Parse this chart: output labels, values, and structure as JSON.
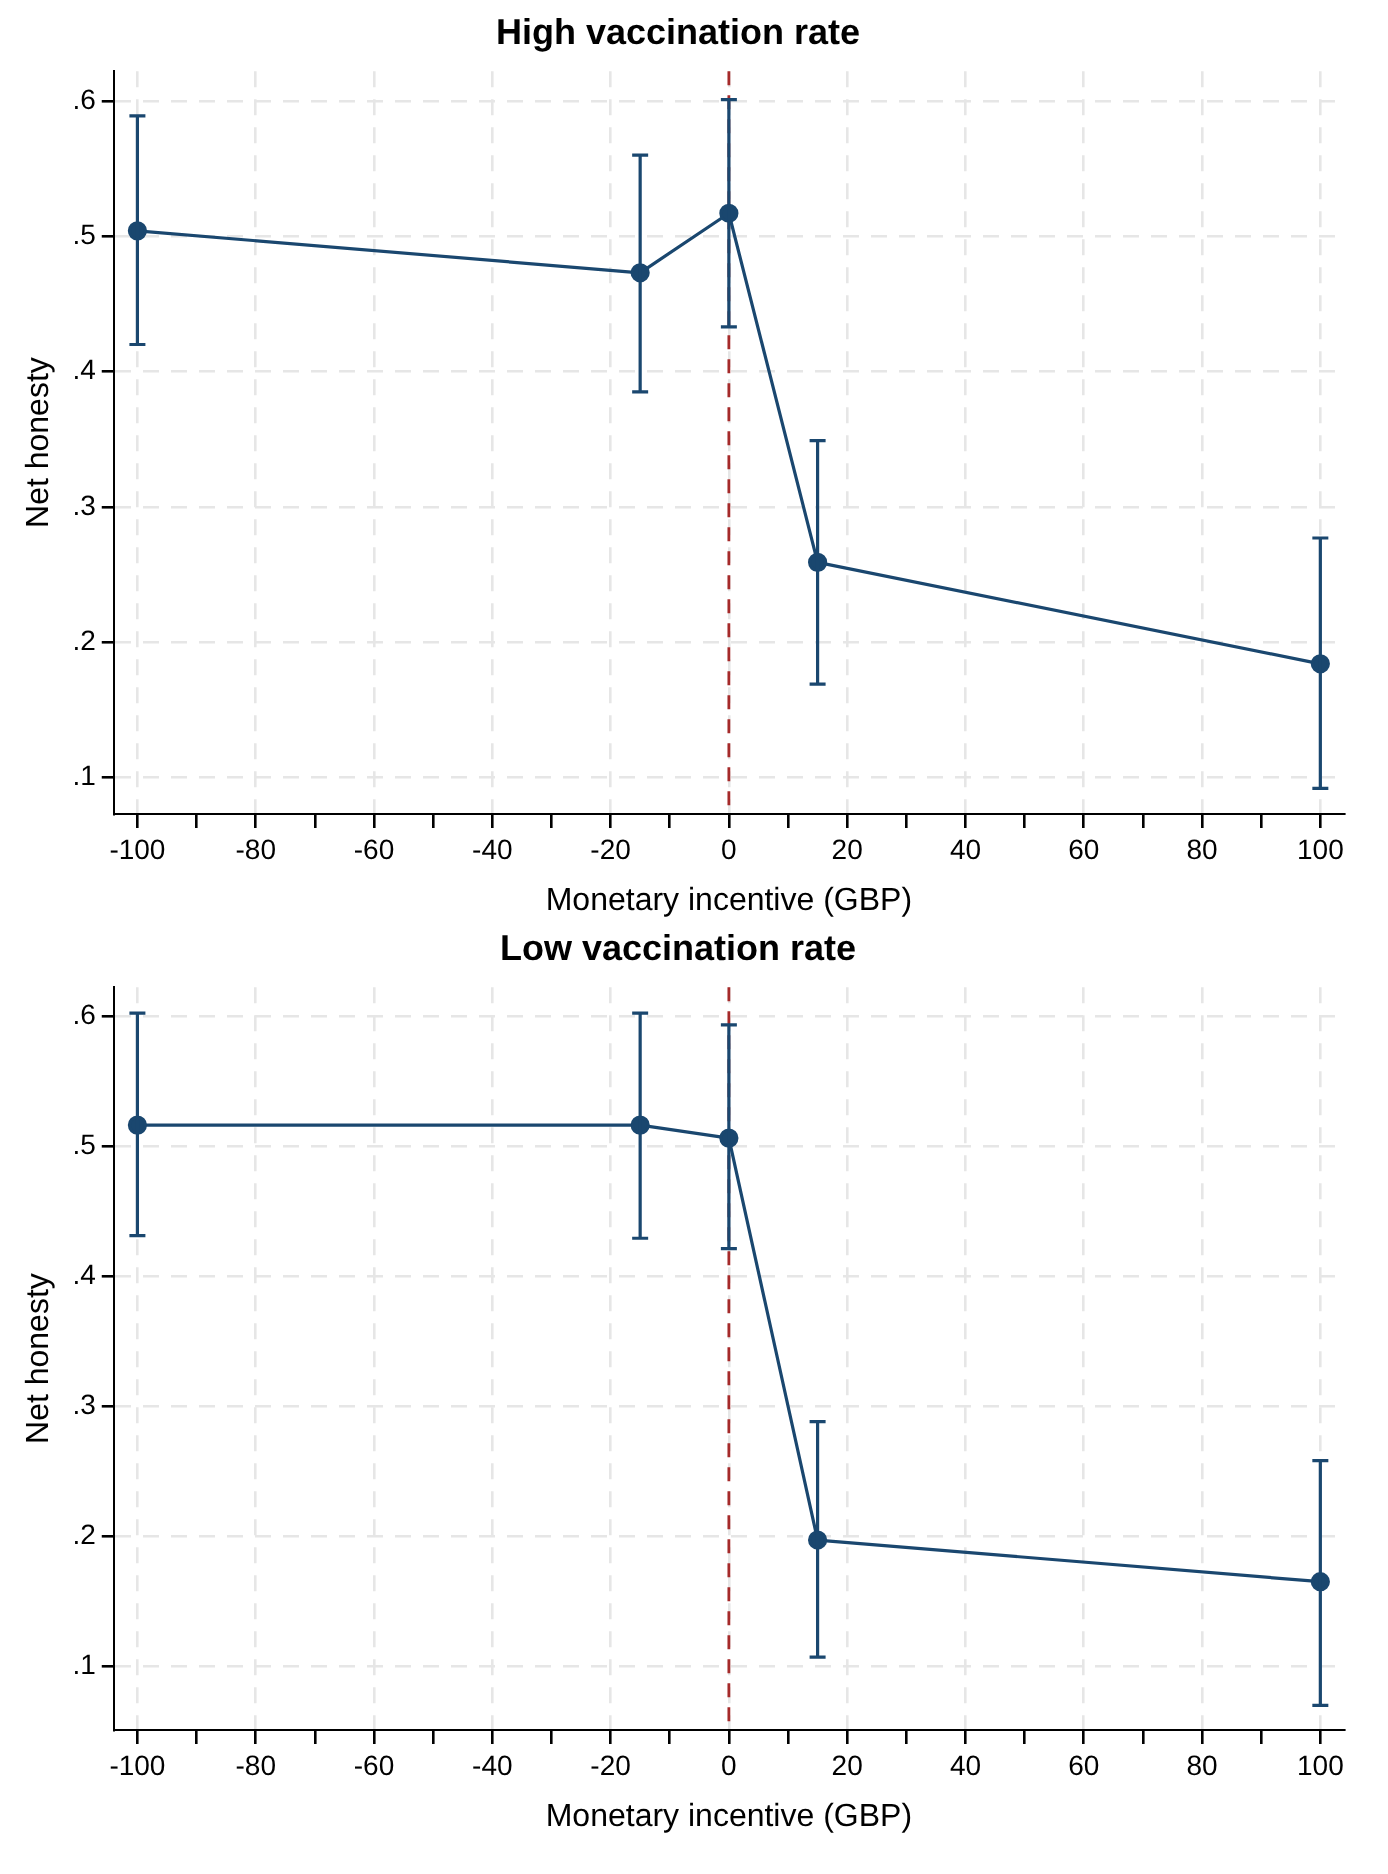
{
  "chart_data": [
    {
      "type": "line",
      "title": "High vaccination rate",
      "xlabel": "Monetary incentive (GBP)",
      "ylabel": "Net honesty",
      "x": [
        -100,
        -15,
        0,
        15,
        100
      ],
      "series": [
        {
          "color": "#1a476f",
          "values": [
            0.504,
            0.473,
            0.517,
            0.259,
            0.184
          ],
          "errors": [
            [
              0.42,
              0.589
            ],
            [
              0.385,
              0.56
            ],
            [
              0.433,
              0.601
            ],
            [
              0.169,
              0.349
            ],
            [
              0.092,
              0.277
            ]
          ]
        }
      ],
      "marker": "circle",
      "line_style": "solid",
      "grid": true,
      "legend": false,
      "xlim": [
        -104,
        104
      ],
      "ylim": [
        0.073,
        0.622
      ],
      "xticks": [
        -100,
        {
          "value": -90,
          "label": null
        },
        -80,
        {
          "value": -70,
          "label": null
        },
        -60,
        {
          "value": -50,
          "label": null
        },
        -40,
        {
          "value": -30,
          "label": null
        },
        -20,
        {
          "value": -10,
          "label": null
        },
        0,
        {
          "value": 10,
          "label": null
        },
        20,
        {
          "value": 30,
          "label": null
        },
        40,
        {
          "value": 50,
          "label": null
        },
        60,
        {
          "value": 70,
          "label": null
        },
        80,
        {
          "value": 90,
          "label": null
        },
        100
      ],
      "yticks": [
        {
          "value": 0.1,
          "label": ".1"
        },
        {
          "value": 0.2,
          "label": ".2"
        },
        {
          "value": 0.3,
          "label": ".3"
        },
        {
          "value": 0.4,
          "label": ".4"
        },
        {
          "value": 0.5,
          "label": ".5"
        },
        {
          "value": 0.6,
          "label": ".6"
        }
      ],
      "ref_lines": [
        {
          "axis": "x",
          "value": 0,
          "color": "#a52a2a",
          "line_style": "dashed"
        }
      ]
    },
    {
      "type": "line",
      "title": "Low vaccination rate",
      "xlabel": "Monetary incentive (GBP)",
      "ylabel": "Net honesty",
      "x": [
        -100,
        -15,
        0,
        15,
        100
      ],
      "series": [
        {
          "color": "#1a476f",
          "values": [
            0.516,
            0.516,
            0.506,
            0.197,
            0.165
          ],
          "errors": [
            [
              0.431,
              0.602
            ],
            [
              0.429,
              0.602
            ],
            [
              0.421,
              0.593
            ],
            [
              0.107,
              0.288
            ],
            [
              0.07,
              0.258
            ]
          ]
        }
      ],
      "marker": "circle",
      "line_style": "solid",
      "grid": true,
      "legend": false,
      "xlim": [
        -104,
        104
      ],
      "ylim": [
        0.051,
        0.622
      ],
      "xticks": [
        -100,
        {
          "value": -90,
          "label": null
        },
        -80,
        {
          "value": -70,
          "label": null
        },
        -60,
        {
          "value": -50,
          "label": null
        },
        -40,
        {
          "value": -30,
          "label": null
        },
        -20,
        {
          "value": -10,
          "label": null
        },
        0,
        {
          "value": 10,
          "label": null
        },
        20,
        {
          "value": 30,
          "label": null
        },
        40,
        {
          "value": 50,
          "label": null
        },
        60,
        {
          "value": 70,
          "label": null
        },
        80,
        {
          "value": 90,
          "label": null
        },
        100
      ],
      "yticks": [
        {
          "value": 0.1,
          "label": ".1"
        },
        {
          "value": 0.2,
          "label": ".2"
        },
        {
          "value": 0.3,
          "label": ".3"
        },
        {
          "value": 0.4,
          "label": ".4"
        },
        {
          "value": 0.5,
          "label": ".5"
        },
        {
          "value": 0.6,
          "label": ".6"
        }
      ],
      "ref_lines": [
        {
          "axis": "x",
          "value": 0,
          "color": "#a52a2a",
          "line_style": "dashed"
        }
      ]
    }
  ]
}
